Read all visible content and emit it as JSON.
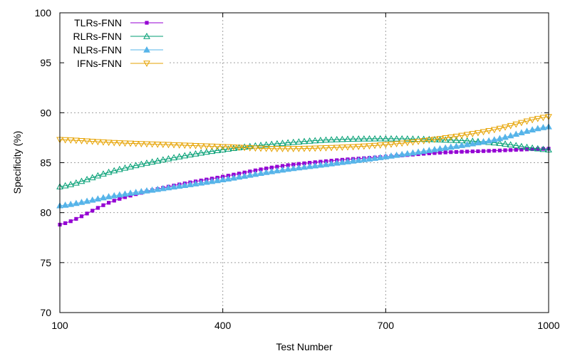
{
  "chart_data": {
    "type": "line",
    "title": "",
    "xlabel": "Test Number",
    "ylabel": "Specificity (%)",
    "xlim": [
      100,
      1000
    ],
    "ylim": [
      70,
      100
    ],
    "xticks": [
      100,
      400,
      700,
      1000
    ],
    "yticks": [
      70,
      75,
      80,
      85,
      90,
      95,
      100
    ],
    "grid": true,
    "legend_position": "top-left",
    "series": [
      {
        "name": "TLRs-FNN",
        "color": "#9400d3",
        "marker": "filled-square",
        "x": [
          100,
          200,
          300,
          400,
          500,
          600,
          700,
          800,
          900,
          1000
        ],
        "y": [
          78.8,
          81.2,
          82.6,
          83.6,
          84.6,
          85.2,
          85.6,
          86.0,
          86.2,
          86.4
        ]
      },
      {
        "name": "RLRs-FNN",
        "color": "#009e73",
        "marker": "open-triangle-up",
        "x": [
          100,
          200,
          300,
          400,
          500,
          600,
          700,
          800,
          900,
          1000
        ],
        "y": [
          82.6,
          84.2,
          85.4,
          86.3,
          86.9,
          87.3,
          87.4,
          87.3,
          87.0,
          86.3
        ]
      },
      {
        "name": "NLRs-FNN",
        "color": "#56b4e9",
        "marker": "filled-triangle-up",
        "x": [
          100,
          200,
          300,
          400,
          500,
          600,
          700,
          800,
          900,
          1000
        ],
        "y": [
          80.7,
          81.7,
          82.5,
          83.3,
          84.2,
          84.9,
          85.6,
          86.4,
          87.3,
          88.6
        ]
      },
      {
        "name": "IFNs-FNN",
        "color": "#e6a200",
        "marker": "open-triangle-down",
        "x": [
          100,
          200,
          300,
          400,
          500,
          600,
          700,
          800,
          900,
          1000
        ],
        "y": [
          87.3,
          87.0,
          86.8,
          86.6,
          86.4,
          86.5,
          86.8,
          87.4,
          88.3,
          89.6
        ]
      }
    ]
  }
}
